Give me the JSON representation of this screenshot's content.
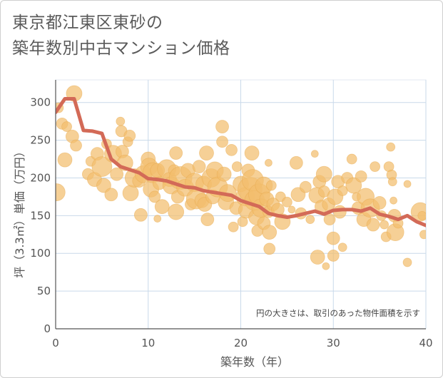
{
  "title": {
    "line1": "東京都江東区東砂の",
    "line2": "築年数別中古マンション価格"
  },
  "colors": {
    "bubble": "#f3be6e",
    "bubble_edge": "#e8a94e",
    "line": "#d36a57",
    "grid": "#c9d9ea",
    "axis": "#555555"
  },
  "chart_data": {
    "type": "scatter",
    "xlabel": "築年数（年）",
    "ylabel": "坪（3.3㎡）単価（万円）",
    "xlim": [
      0,
      40
    ],
    "ylim": [
      0,
      330
    ],
    "x_ticks": [
      "0",
      "10",
      "20",
      "30",
      "40"
    ],
    "y_ticks": [
      "0",
      "50",
      "100",
      "150",
      "200",
      "250",
      "300"
    ],
    "x_tick_values": [
      0,
      10,
      20,
      30,
      40
    ],
    "y_tick_values": [
      0,
      50,
      100,
      150,
      200,
      250,
      300
    ],
    "grid": true,
    "annotation": "円の大きさは、取引のあった物件面積を示す",
    "trend_line": {
      "x": [
        0,
        1,
        2,
        3,
        4,
        5,
        6,
        7,
        8,
        9,
        10,
        11,
        12,
        13,
        14,
        15,
        16,
        17,
        18,
        19,
        20,
        21,
        22,
        23,
        24,
        25,
        26,
        27,
        28,
        29,
        30,
        31,
        32,
        33,
        34,
        35,
        36,
        37,
        38,
        39,
        40
      ],
      "y": [
        287,
        305,
        305,
        263,
        262,
        259,
        225,
        215,
        211,
        207,
        199,
        198,
        196,
        192,
        188,
        187,
        183,
        181,
        179,
        177,
        170,
        166,
        162,
        153,
        150,
        148,
        150,
        153,
        156,
        152,
        157,
        158,
        158,
        156,
        160,
        152,
        149,
        145,
        150,
        142,
        137
      ]
    },
    "bubbles": [
      {
        "x": 0.1,
        "y": 181,
        "s": 12
      },
      {
        "x": 0.3,
        "y": 293,
        "s": 7
      },
      {
        "x": 0.7,
        "y": 272,
        "s": 8
      },
      {
        "x": 1.0,
        "y": 224,
        "s": 10
      },
      {
        "x": 1.2,
        "y": 268,
        "s": 7
      },
      {
        "x": 1.8,
        "y": 255,
        "s": 9
      },
      {
        "x": 2.0,
        "y": 312,
        "s": 11
      },
      {
        "x": 2.2,
        "y": 243,
        "s": 8
      },
      {
        "x": 3.5,
        "y": 205,
        "s": 8
      },
      {
        "x": 3.8,
        "y": 222,
        "s": 7
      },
      {
        "x": 4.2,
        "y": 198,
        "s": 10
      },
      {
        "x": 4.5,
        "y": 232,
        "s": 9
      },
      {
        "x": 5.0,
        "y": 215,
        "s": 14
      },
      {
        "x": 5.2,
        "y": 190,
        "s": 10
      },
      {
        "x": 5.5,
        "y": 245,
        "s": 7
      },
      {
        "x": 6.0,
        "y": 178,
        "s": 9
      },
      {
        "x": 6.2,
        "y": 232,
        "s": 12
      },
      {
        "x": 6.6,
        "y": 205,
        "s": 9
      },
      {
        "x": 7.0,
        "y": 275,
        "s": 6
      },
      {
        "x": 7.1,
        "y": 262,
        "s": 8
      },
      {
        "x": 7.2,
        "y": 235,
        "s": 9
      },
      {
        "x": 7.5,
        "y": 220,
        "s": 11
      },
      {
        "x": 7.8,
        "y": 248,
        "s": 7
      },
      {
        "x": 8.0,
        "y": 256,
        "s": 8
      },
      {
        "x": 8.1,
        "y": 180,
        "s": 11
      },
      {
        "x": 8.5,
        "y": 200,
        "s": 13
      },
      {
        "x": 9.0,
        "y": 196,
        "s": 9
      },
      {
        "x": 9.2,
        "y": 151,
        "s": 9
      },
      {
        "x": 9.5,
        "y": 205,
        "s": 12
      },
      {
        "x": 10.0,
        "y": 225,
        "s": 10
      },
      {
        "x": 10.1,
        "y": 215,
        "s": 12
      },
      {
        "x": 10.3,
        "y": 185,
        "s": 11
      },
      {
        "x": 10.5,
        "y": 207,
        "s": 14
      },
      {
        "x": 10.7,
        "y": 175,
        "s": 8
      },
      {
        "x": 11.0,
        "y": 210,
        "s": 10
      },
      {
        "x": 11.2,
        "y": 193,
        "s": 9
      },
      {
        "x": 11.5,
        "y": 162,
        "s": 10
      },
      {
        "x": 11.0,
        "y": 146,
        "s": 5
      },
      {
        "x": 12.0,
        "y": 212,
        "s": 13
      },
      {
        "x": 12.3,
        "y": 198,
        "s": 10
      },
      {
        "x": 12.5,
        "y": 190,
        "s": 12
      },
      {
        "x": 12.8,
        "y": 210,
        "s": 8
      },
      {
        "x": 13.0,
        "y": 233,
        "s": 9
      },
      {
        "x": 13.0,
        "y": 155,
        "s": 11
      },
      {
        "x": 13.2,
        "y": 175,
        "s": 9
      },
      {
        "x": 13.5,
        "y": 200,
        "s": 16
      },
      {
        "x": 14.0,
        "y": 187,
        "s": 12
      },
      {
        "x": 14.3,
        "y": 210,
        "s": 10
      },
      {
        "x": 14.6,
        "y": 165,
        "s": 8
      },
      {
        "x": 15.0,
        "y": 194,
        "s": 13
      },
      {
        "x": 15.2,
        "y": 172,
        "s": 14
      },
      {
        "x": 15.5,
        "y": 215,
        "s": 9
      },
      {
        "x": 15.8,
        "y": 170,
        "s": 10
      },
      {
        "x": 16.0,
        "y": 192,
        "s": 11
      },
      {
        "x": 16.1,
        "y": 165,
        "s": 10
      },
      {
        "x": 16.3,
        "y": 233,
        "s": 10
      },
      {
        "x": 16.4,
        "y": 145,
        "s": 9
      },
      {
        "x": 16.8,
        "y": 200,
        "s": 13
      },
      {
        "x": 17.0,
        "y": 175,
        "s": 10
      },
      {
        "x": 17.2,
        "y": 210,
        "s": 12
      },
      {
        "x": 17.5,
        "y": 188,
        "s": 14
      },
      {
        "x": 18.0,
        "y": 268,
        "s": 9
      },
      {
        "x": 18.0,
        "y": 248,
        "s": 8
      },
      {
        "x": 18.2,
        "y": 205,
        "s": 10
      },
      {
        "x": 18.4,
        "y": 168,
        "s": 11
      },
      {
        "x": 18.6,
        "y": 180,
        "s": 12
      },
      {
        "x": 19.0,
        "y": 237,
        "s": 8
      },
      {
        "x": 19.2,
        "y": 135,
        "s": 7
      },
      {
        "x": 19.5,
        "y": 160,
        "s": 9
      },
      {
        "x": 19.6,
        "y": 215,
        "s": 7
      },
      {
        "x": 20.0,
        "y": 192,
        "s": 11
      },
      {
        "x": 20.2,
        "y": 142,
        "s": 7
      },
      {
        "x": 20.5,
        "y": 175,
        "s": 13
      },
      {
        "x": 20.6,
        "y": 157,
        "s": 11
      },
      {
        "x": 20.8,
        "y": 210,
        "s": 9
      },
      {
        "x": 21.0,
        "y": 185,
        "s": 17
      },
      {
        "x": 21.2,
        "y": 233,
        "s": 10
      },
      {
        "x": 21.3,
        "y": 197,
        "s": 15
      },
      {
        "x": 21.5,
        "y": 170,
        "s": 14
      },
      {
        "x": 21.7,
        "y": 148,
        "s": 11
      },
      {
        "x": 21.8,
        "y": 130,
        "s": 8
      },
      {
        "x": 22.0,
        "y": 178,
        "s": 15
      },
      {
        "x": 22.2,
        "y": 160,
        "s": 13
      },
      {
        "x": 22.5,
        "y": 190,
        "s": 12
      },
      {
        "x": 22.5,
        "y": 140,
        "s": 9
      },
      {
        "x": 22.8,
        "y": 172,
        "s": 10
      },
      {
        "x": 23.0,
        "y": 155,
        "s": 8
      },
      {
        "x": 23.0,
        "y": 220,
        "s": 5
      },
      {
        "x": 23.1,
        "y": 128,
        "s": 10
      },
      {
        "x": 23.1,
        "y": 106,
        "s": 8
      },
      {
        "x": 23.3,
        "y": 190,
        "s": 7
      },
      {
        "x": 23.5,
        "y": 165,
        "s": 9
      },
      {
        "x": 24.0,
        "y": 158,
        "s": 9
      },
      {
        "x": 24.3,
        "y": 175,
        "s": 7
      },
      {
        "x": 24.5,
        "y": 142,
        "s": 11
      },
      {
        "x": 25.0,
        "y": 168,
        "s": 7
      },
      {
        "x": 25.5,
        "y": 158,
        "s": 5
      },
      {
        "x": 26.0,
        "y": 220,
        "s": 9
      },
      {
        "x": 26.2,
        "y": 178,
        "s": 10
      },
      {
        "x": 26.5,
        "y": 153,
        "s": 8
      },
      {
        "x": 27.0,
        "y": 188,
        "s": 8
      },
      {
        "x": 27.5,
        "y": 145,
        "s": 6
      },
      {
        "x": 28.0,
        "y": 232,
        "s": 5
      },
      {
        "x": 28.2,
        "y": 177,
        "s": 11
      },
      {
        "x": 28.3,
        "y": 95,
        "s": 10
      },
      {
        "x": 28.5,
        "y": 195,
        "s": 9
      },
      {
        "x": 28.7,
        "y": 162,
        "s": 9
      },
      {
        "x": 29.0,
        "y": 205,
        "s": 11
      },
      {
        "x": 29.0,
        "y": 182,
        "s": 8
      },
      {
        "x": 29.2,
        "y": 83,
        "s": 5
      },
      {
        "x": 29.5,
        "y": 165,
        "s": 9
      },
      {
        "x": 29.6,
        "y": 145,
        "s": 8
      },
      {
        "x": 30.0,
        "y": 120,
        "s": 9
      },
      {
        "x": 30.0,
        "y": 97,
        "s": 8
      },
      {
        "x": 30.2,
        "y": 175,
        "s": 11
      },
      {
        "x": 30.5,
        "y": 195,
        "s": 9
      },
      {
        "x": 30.7,
        "y": 155,
        "s": 9
      },
      {
        "x": 31.0,
        "y": 108,
        "s": 6
      },
      {
        "x": 31.0,
        "y": 183,
        "s": 7
      },
      {
        "x": 31.5,
        "y": 200,
        "s": 8
      },
      {
        "x": 32.0,
        "y": 225,
        "s": 7
      },
      {
        "x": 32.2,
        "y": 190,
        "s": 11
      },
      {
        "x": 32.5,
        "y": 175,
        "s": 6
      },
      {
        "x": 32.7,
        "y": 160,
        "s": 9
      },
      {
        "x": 33.0,
        "y": 202,
        "s": 8
      },
      {
        "x": 33.3,
        "y": 145,
        "s": 10
      },
      {
        "x": 33.5,
        "y": 175,
        "s": 12
      },
      {
        "x": 34.0,
        "y": 160,
        "s": 13
      },
      {
        "x": 34.3,
        "y": 138,
        "s": 9
      },
      {
        "x": 34.5,
        "y": 215,
        "s": 7
      },
      {
        "x": 35.0,
        "y": 167,
        "s": 9
      },
      {
        "x": 35.2,
        "y": 150,
        "s": 7
      },
      {
        "x": 35.5,
        "y": 138,
        "s": 6
      },
      {
        "x": 35.7,
        "y": 122,
        "s": 7
      },
      {
        "x": 36.0,
        "y": 215,
        "s": 7
      },
      {
        "x": 36.2,
        "y": 241,
        "s": 6
      },
      {
        "x": 36.3,
        "y": 204,
        "s": 7
      },
      {
        "x": 36.4,
        "y": 195,
        "s": 6
      },
      {
        "x": 36.5,
        "y": 170,
        "s": 5
      },
      {
        "x": 36.6,
        "y": 150,
        "s": 9
      },
      {
        "x": 36.7,
        "y": 128,
        "s": 12
      },
      {
        "x": 37.0,
        "y": 140,
        "s": 7
      },
      {
        "x": 38.0,
        "y": 192,
        "s": 5
      },
      {
        "x": 38.0,
        "y": 88,
        "s": 6
      },
      {
        "x": 39.4,
        "y": 155,
        "s": 13
      },
      {
        "x": 39.6,
        "y": 150,
        "s": 6
      },
      {
        "x": 39.8,
        "y": 125,
        "s": 6
      }
    ]
  }
}
